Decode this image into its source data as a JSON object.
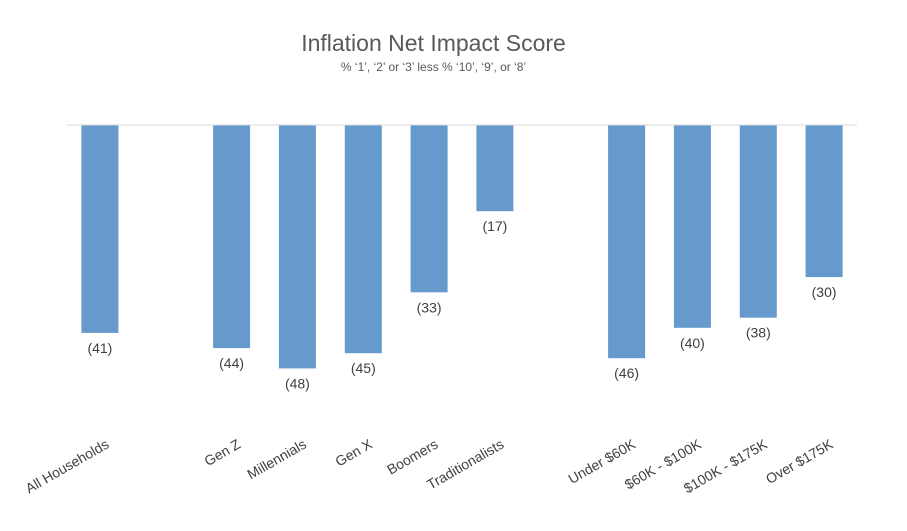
{
  "chart_data": {
    "type": "bar",
    "title": "Inflation Net Impact Score",
    "subtitle": "% ‘1’, ‘2’ or ‘3’ less % ‘10’, ‘9’, or ‘8’",
    "categories": [
      "All Households",
      "",
      "Gen Z",
      "Millennials",
      "Gen X",
      "Boomers",
      "Traditionalists",
      "",
      "Under $60K",
      "$60K - $100K",
      "$100K - $175K",
      "Over $175K"
    ],
    "values": [
      -41,
      null,
      -44,
      -48,
      -45,
      -33,
      -17,
      null,
      -46,
      -40,
      -38,
      -30
    ],
    "data_labels": [
      "(41)",
      "",
      "(44)",
      "(48)",
      "(45)",
      "(33)",
      "(17)",
      "",
      "(46)",
      "(40)",
      "(38)",
      "(30)"
    ],
    "bar_color": "#6699CC",
    "ylim": [
      -50,
      0
    ],
    "grid": false,
    "xlabel": "",
    "ylabel": ""
  }
}
